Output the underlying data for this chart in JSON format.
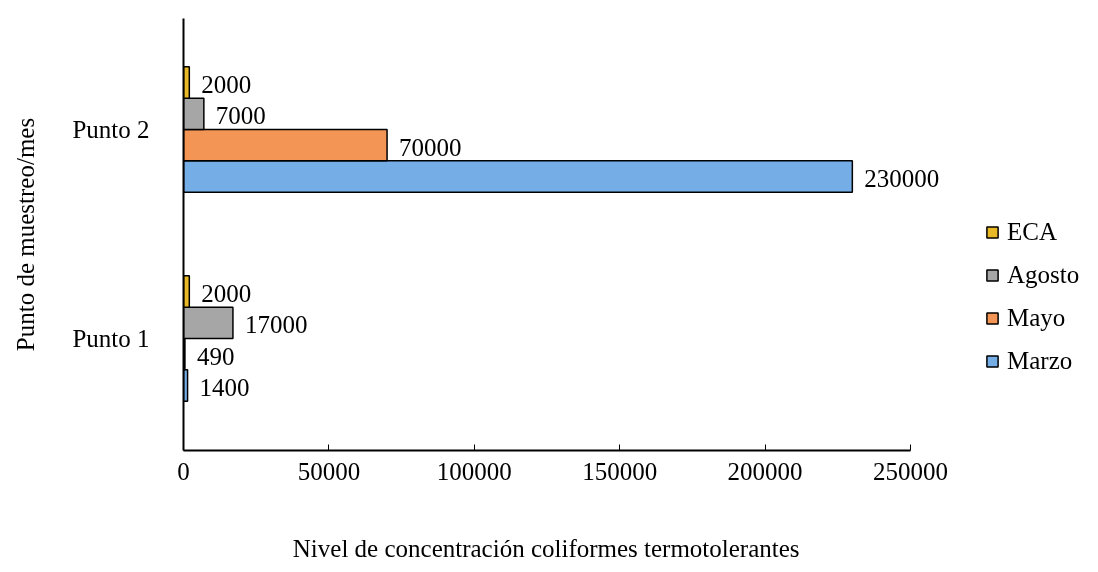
{
  "chart_data": {
    "type": "bar",
    "orientation": "horizontal",
    "categories": [
      "Punto 2",
      "Punto 1"
    ],
    "series": [
      {
        "name": "Marzo",
        "color": "#75aee6",
        "values": [
          230000,
          1400
        ]
      },
      {
        "name": "Mayo",
        "color": "#f29555",
        "values": [
          70000,
          490
        ]
      },
      {
        "name": "Agosto",
        "color": "#a6a6a6",
        "values": [
          7000,
          17000
        ]
      },
      {
        "name": "ECA",
        "color": "#e9b826",
        "values": [
          2000,
          2000
        ]
      }
    ],
    "xlabel": "Nivel de concentración coliformes termotolerantes",
    "ylabel": "Punto de muestreo/mes",
    "xlim": [
      0,
      250000
    ],
    "xticks": [
      0,
      50000,
      100000,
      150000,
      200000,
      250000
    ],
    "data_labels": true,
    "legend": "right",
    "grid": false
  }
}
